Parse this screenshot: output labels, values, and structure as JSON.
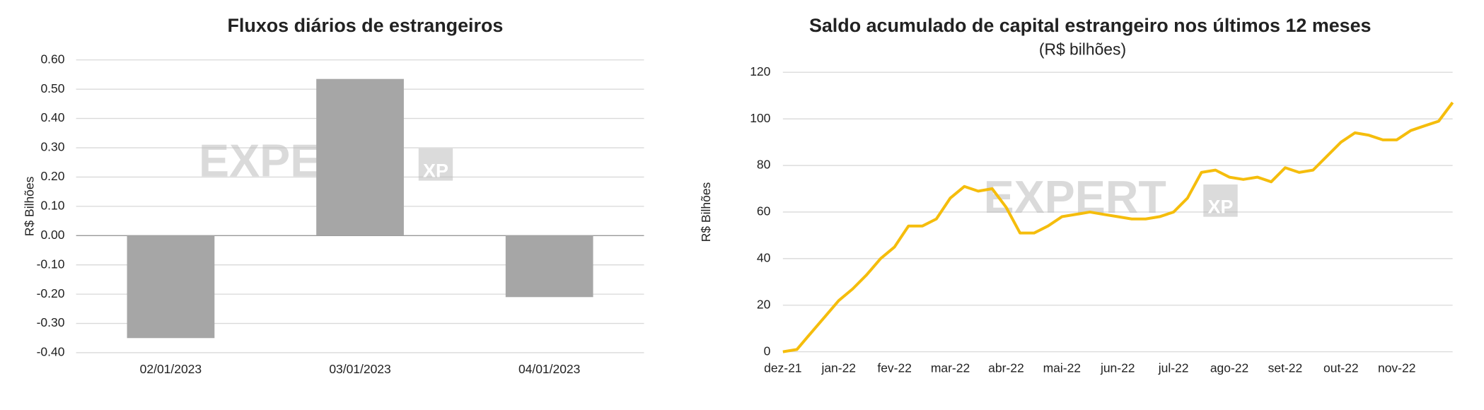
{
  "chart_data": [
    {
      "type": "bar",
      "title": "Fluxos diários de estrangeiros",
      "y_label": "R$ Bilhões",
      "categories": [
        "02/01/2023",
        "03/01/2023",
        "04/01/2023"
      ],
      "values": [
        -0.35,
        0.535,
        -0.21
      ],
      "color": "#a6a6a6",
      "ylim": [
        -0.4,
        0.6
      ],
      "yticks": [
        {
          "value": -0.4,
          "label": "-0.40"
        },
        {
          "value": -0.3,
          "label": "-0.30"
        },
        {
          "value": -0.2,
          "label": "-0.20"
        },
        {
          "value": -0.1,
          "label": "-0.10"
        },
        {
          "value": 0,
          "label": "0.00"
        },
        {
          "value": 0.1,
          "label": "0.10"
        },
        {
          "value": 0.2,
          "label": "0.20"
        },
        {
          "value": 0.3,
          "label": "0.30"
        },
        {
          "value": 0.4,
          "label": "0.40"
        },
        {
          "value": 0.5,
          "label": "0.50"
        },
        {
          "value": 0.6,
          "label": "0.60"
        }
      ],
      "grid": true,
      "watermark": [
        "EXPERT",
        "XP"
      ]
    },
    {
      "type": "line",
      "title": "Saldo acumulado de capital estrangeiro nos últimos 12 meses",
      "subtitle": "(R$ bilhões)",
      "y_label": "R$ Bilhões",
      "categories": [
        "dez-21",
        null,
        null,
        null,
        "jan-22",
        null,
        null,
        null,
        "fev-22",
        null,
        null,
        null,
        "mar-22",
        null,
        null,
        null,
        "abr-22",
        null,
        null,
        null,
        "mai-22",
        null,
        null,
        null,
        "jun-22",
        null,
        null,
        null,
        "jul-22",
        null,
        null,
        null,
        "ago-22",
        null,
        null,
        null,
        "set-22",
        null,
        null,
        null,
        "out-22",
        null,
        null,
        null,
        "nov-22",
        null,
        null,
        null,
        null
      ],
      "values": [
        0,
        1,
        8,
        15,
        22,
        27,
        33,
        40,
        45,
        54,
        54,
        57,
        66,
        71,
        69,
        70,
        62,
        51,
        51,
        54,
        58,
        59,
        60,
        59,
        58,
        57,
        57,
        58,
        60,
        66,
        77,
        78,
        75,
        74,
        75,
        73,
        79,
        77,
        78,
        84,
        90,
        94,
        93,
        91,
        91,
        95,
        97,
        99,
        107
      ],
      "color": "#f5bd0c",
      "ylim": [
        0,
        120
      ],
      "yticks": [
        0,
        20,
        40,
        60,
        80,
        100,
        120
      ],
      "grid": true,
      "watermark": [
        "EXPERT",
        "XP"
      ]
    }
  ]
}
